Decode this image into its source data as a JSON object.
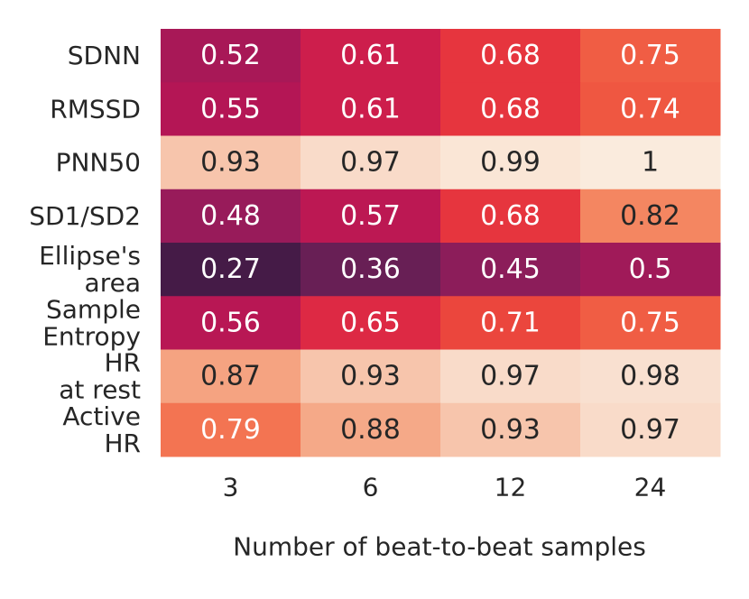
{
  "chart_data": {
    "type": "heatmap",
    "title": "",
    "xlabel": "Number of beat-to-beat samples",
    "ylabel": "",
    "columns": [
      "3",
      "6",
      "12",
      "24"
    ],
    "rows": [
      {
        "label": [
          "SDNN"
        ],
        "values": [
          "0.52",
          "0.61",
          "0.68",
          "0.75"
        ]
      },
      {
        "label": [
          "RMSSD"
        ],
        "values": [
          "0.55",
          "0.61",
          "0.68",
          "0.74"
        ]
      },
      {
        "label": [
          "PNN50"
        ],
        "values": [
          "0.93",
          "0.97",
          "0.99",
          "1"
        ]
      },
      {
        "label": [
          "SD1/SD2"
        ],
        "values": [
          "0.48",
          "0.57",
          "0.68",
          "0.82"
        ]
      },
      {
        "label": [
          "Ellipse's",
          "area"
        ],
        "values": [
          "0.27",
          "0.36",
          "0.45",
          "0.5"
        ]
      },
      {
        "label": [
          "Sample",
          "Entropy"
        ],
        "values": [
          "0.56",
          "0.65",
          "0.71",
          "0.75"
        ]
      },
      {
        "label": [
          "HR",
          "at rest"
        ],
        "values": [
          "0.87",
          "0.93",
          "0.97",
          "0.98"
        ]
      },
      {
        "label": [
          "Active",
          "HR"
        ],
        "values": [
          "0.79",
          "0.88",
          "0.93",
          "0.97"
        ]
      }
    ],
    "colormap": "rocket",
    "vmin": 0.27,
    "vmax": 1.0,
    "colorbar": false,
    "text_colors": {
      "light": "#ffffff",
      "dark": "#262626"
    }
  }
}
